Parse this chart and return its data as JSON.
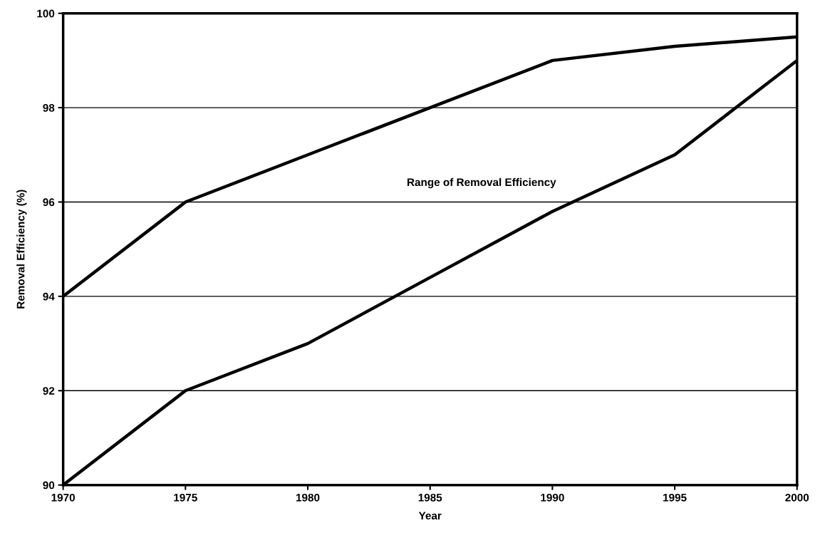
{
  "chart_data": {
    "type": "line",
    "xlabel": "Year",
    "ylabel": "Removal Efficiency (%)",
    "x": [
      1970,
      1975,
      1980,
      1985,
      1990,
      1995,
      2000
    ],
    "series": [
      {
        "color": "#000000",
        "values": [
          94,
          96,
          97,
          98,
          99,
          99.3,
          99.5
        ]
      },
      {
        "color": "#000000",
        "values": [
          90,
          92,
          93,
          94.4,
          95.8,
          97,
          99
        ]
      }
    ],
    "xlim": [
      1970,
      2000
    ],
    "xticks": [
      1970,
      1975,
      1980,
      1985,
      1990,
      1995,
      2000
    ],
    "ylim": [
      90,
      100
    ],
    "yticks": [
      90,
      92,
      94,
      96,
      98,
      100
    ],
    "grid": "y",
    "marker": "none",
    "line_style": "solid",
    "annotations": [
      "Range of Removal Efficiency"
    ]
  }
}
